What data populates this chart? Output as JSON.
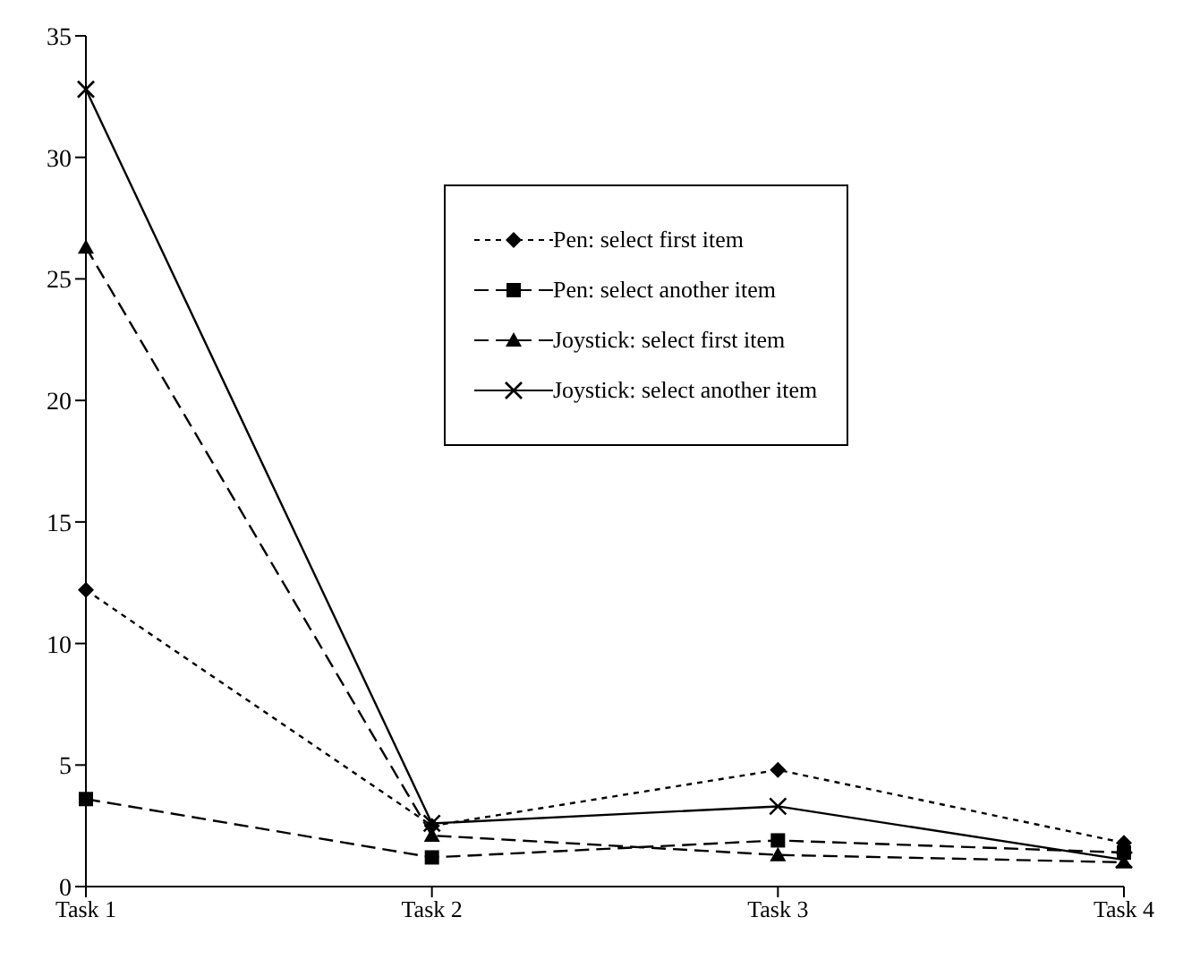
{
  "chart_data": {
    "type": "line",
    "categories": [
      "Task 1",
      "Task 2",
      "Task 3",
      "Task 4"
    ],
    "series": [
      {
        "name": "Pen: select first item",
        "color": "#000000",
        "values": [
          12.2,
          2.5,
          4.8,
          1.8
        ],
        "marker": "diamond",
        "line_style": "dotted"
      },
      {
        "name": "Pen: select another item",
        "color": "#000000",
        "values": [
          3.6,
          1.2,
          1.9,
          1.4
        ],
        "marker": "square",
        "line_style": "dashed"
      },
      {
        "name": "Joystick: select first item",
        "color": "#000000",
        "values": [
          26.3,
          2.1,
          1.3,
          1.0
        ],
        "marker": "triangle",
        "line_style": "dashed"
      },
      {
        "name": "Joystick: select another item",
        "color": "#000000",
        "values": [
          32.8,
          2.6,
          3.3,
          1.1
        ],
        "marker": "cross",
        "line_style": "solid"
      }
    ],
    "ylim": [
      0,
      35
    ],
    "yticks": [
      0,
      5,
      10,
      15,
      20,
      25,
      30,
      35
    ],
    "legend": "top right"
  }
}
